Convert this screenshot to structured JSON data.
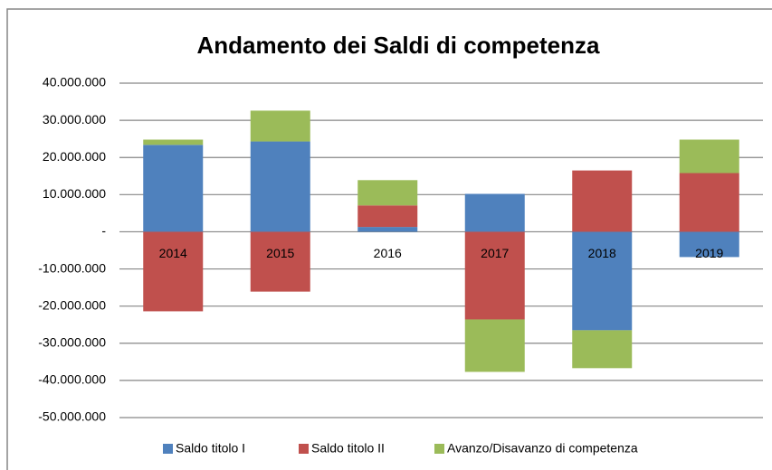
{
  "chart_data": {
    "type": "stacked_bar",
    "title": "Andamento dei Saldi di competenza",
    "categories": [
      "2014",
      "2015",
      "2016",
      "2017",
      "2018",
      "2019"
    ],
    "series": [
      {
        "name": "Saldo titolo I",
        "color": "#4f81bd",
        "values": [
          23400000,
          24300000,
          1300000,
          10200000,
          -26500000,
          -6800000
        ]
      },
      {
        "name": "Saldo titolo II",
        "color": "#c0504d",
        "values": [
          -21400000,
          -16100000,
          5800000,
          -23600000,
          16500000,
          15800000
        ]
      },
      {
        "name": "Avanzo/Disavanzo di competenza",
        "color": "#9bbb59",
        "values": [
          1400000,
          8300000,
          6800000,
          -14100000,
          -10200000,
          9000000
        ]
      }
    ],
    "ylim": [
      -50000000,
      40000000
    ],
    "yticks": [
      {
        "value": 40000000,
        "label": "40.000.000"
      },
      {
        "value": 30000000,
        "label": "30.000.000"
      },
      {
        "value": 20000000,
        "label": "20.000.000"
      },
      {
        "value": 10000000,
        "label": "10.000.000"
      },
      {
        "value": 0,
        "label": "-"
      },
      {
        "value": -10000000,
        "label": "-10.000.000"
      },
      {
        "value": -20000000,
        "label": "-20.000.000"
      },
      {
        "value": -30000000,
        "label": "-30.000.000"
      },
      {
        "value": -40000000,
        "label": "-40.000.000"
      },
      {
        "value": -50000000,
        "label": "-50.000.000"
      }
    ],
    "grid": true,
    "legend": "bottom"
  }
}
